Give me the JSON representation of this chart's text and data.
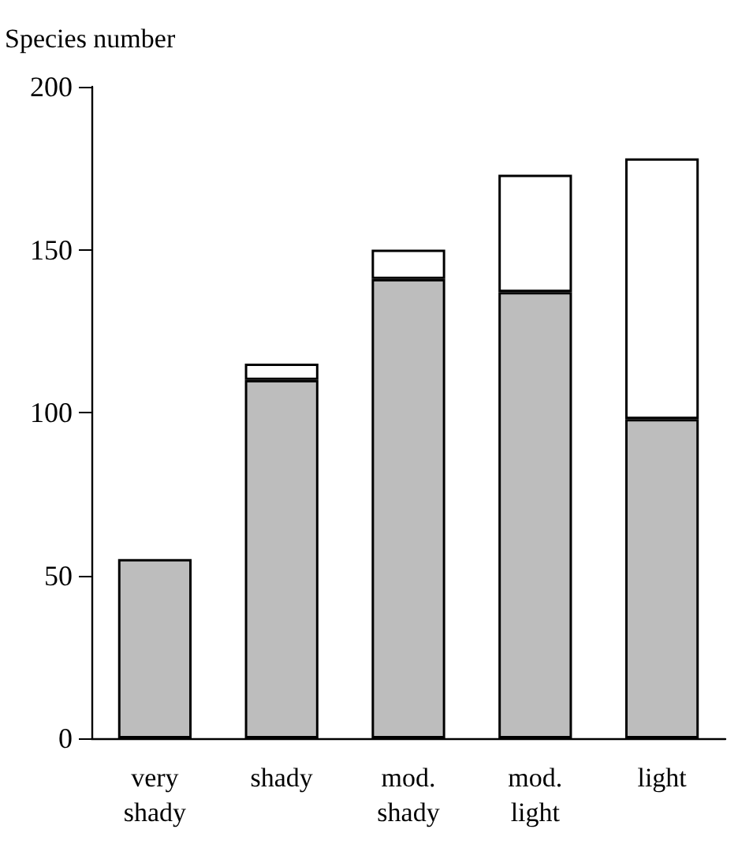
{
  "chart_data": {
    "type": "bar",
    "ylabel": "Species number",
    "stacked": true,
    "categories": [
      "very\nshady",
      "shady",
      "mod.\nshady",
      "mod.\nlight",
      "light"
    ],
    "series": [
      {
        "color": "#bdbdbd",
        "values": [
          55,
          110,
          141,
          137,
          98
        ]
      },
      {
        "color": "#ffffff",
        "values": [
          null,
          5,
          9,
          36,
          80
        ]
      }
    ],
    "ylim": [
      0,
      200
    ],
    "yticks": [
      0,
      50,
      100,
      150,
      200
    ],
    "grid": false
  }
}
